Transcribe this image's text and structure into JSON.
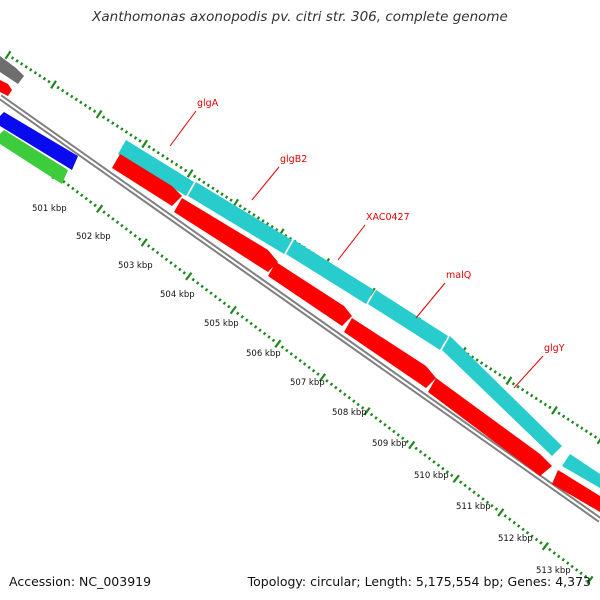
{
  "title": "Xanthomonas axonopodis pv. citri str. 306, complete genome",
  "footer": {
    "accession": "Accession: NC_003919",
    "summary": "Topology: circular; Length: 5,175,554 bp; Genes: 4,373"
  },
  "colors": {
    "backbone": "#808080",
    "forward_cds": "#29cccc",
    "reverse_cds": "#ff0000",
    "blue_track": "#0a0aee",
    "green_track": "#3ccc3c",
    "gray_track": "#6e6e6e",
    "tick_marks": "#1e881e",
    "label": "#e00000"
  },
  "gene_labels": [
    "glgA",
    "glgB2",
    "XAC0427",
    "malQ",
    "glgY"
  ],
  "kbp_ticks": [
    "501 kbp",
    "502 kbp",
    "503 kbp",
    "504 kbp",
    "505 kbp",
    "506 kbp",
    "507 kbp",
    "508 kbp",
    "509 kbp",
    "510 kbp",
    "511 kbp",
    "512 kbp",
    "513 kbp"
  ]
}
